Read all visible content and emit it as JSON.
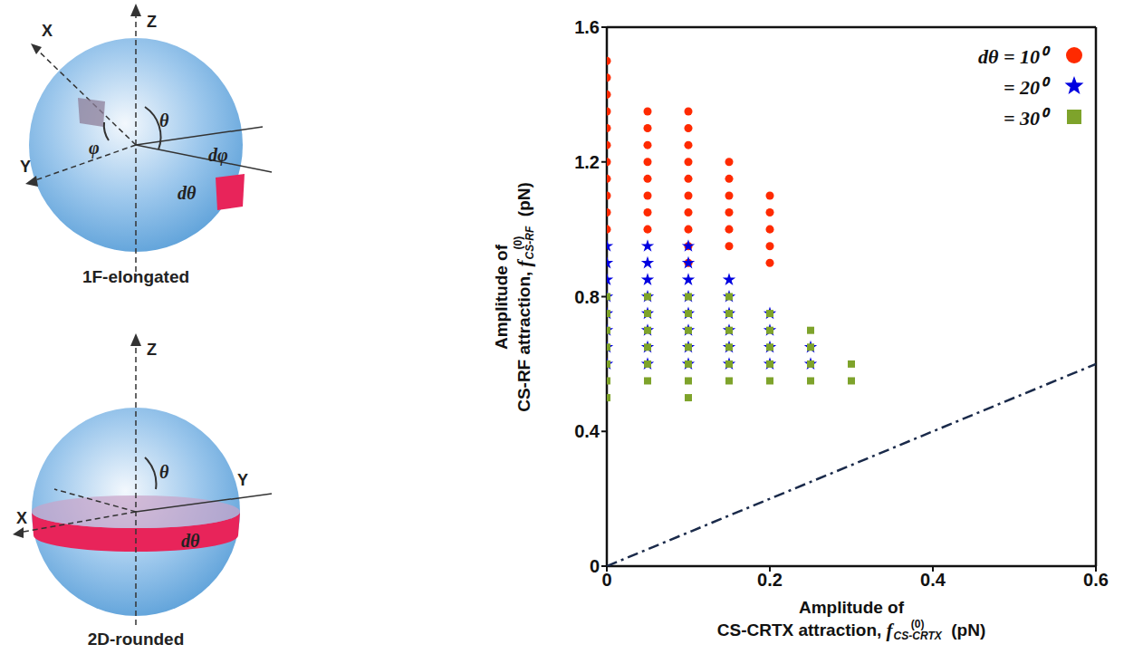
{
  "diagrams": [
    {
      "caption": "1F-elongated",
      "axes": [
        "Z",
        "X",
        "Y"
      ],
      "angles": [
        "φ",
        "θ"
      ],
      "patch": [
        "dφ",
        "dθ"
      ]
    },
    {
      "caption": "2D-rounded",
      "axes": [
        "Z",
        "X",
        "Y"
      ],
      "angles": [
        "θ"
      ],
      "patch": [
        "dθ"
      ]
    }
  ],
  "chart_data": {
    "type": "scatter",
    "xlabel": {
      "line1": "Amplitude of",
      "line2": "CS-CRTX attraction,",
      "symbol": "f",
      "superscript": "(0)",
      "subscript": "CS-CRTX",
      "unit": "(pN)"
    },
    "ylabel": {
      "line1": "Amplitude of",
      "line2": "CS-RF attraction,",
      "symbol": "f",
      "superscript": "(0)",
      "subscript": "CS-RF",
      "unit": "(pN)"
    },
    "xlim": [
      0,
      0.6
    ],
    "xticks": [
      0,
      0.2,
      0.4,
      0.6
    ],
    "ylim": [
      0,
      1.6
    ],
    "yticks": [
      0,
      0.4,
      0.8,
      1.2,
      1.6
    ],
    "grid": false,
    "legend": "upper right",
    "series": [
      {
        "name": "dθ = 10⁰",
        "color": "#ff2a00",
        "marker": "circle",
        "x": [
          0,
          0,
          0,
          0,
          0,
          0,
          0,
          0,
          0,
          0,
          0,
          0.05,
          0.05,
          0.05,
          0.05,
          0.05,
          0.05,
          0.05,
          0.05,
          0.1,
          0.1,
          0.1,
          0.1,
          0.1,
          0.1,
          0.1,
          0.1,
          0.1,
          0.1,
          0.15,
          0.15,
          0.15,
          0.15,
          0.15,
          0.15,
          0.2,
          0.2,
          0.2,
          0.2,
          0.2
        ],
        "values": [
          1.0,
          1.05,
          1.1,
          1.15,
          1.2,
          1.25,
          1.3,
          1.35,
          1.4,
          1.45,
          1.5,
          1.0,
          1.05,
          1.1,
          1.15,
          1.2,
          1.25,
          1.3,
          1.35,
          0.9,
          0.95,
          1.0,
          1.05,
          1.1,
          1.15,
          1.2,
          1.25,
          1.3,
          1.35,
          0.95,
          1.0,
          1.05,
          1.1,
          1.15,
          1.2,
          0.9,
          0.95,
          1.0,
          1.05,
          1.1
        ]
      },
      {
        "name": "= 20⁰",
        "color": "#0000e0",
        "marker": "star",
        "x": [
          0,
          0,
          0,
          0,
          0,
          0,
          0,
          0,
          0.05,
          0.05,
          0.05,
          0.05,
          0.05,
          0.05,
          0.05,
          0.05,
          0.1,
          0.1,
          0.1,
          0.1,
          0.1,
          0.1,
          0.1,
          0.1,
          0.15,
          0.15,
          0.15,
          0.15,
          0.15,
          0.15,
          0.2,
          0.2,
          0.2,
          0.2,
          0.25,
          0.25
        ],
        "values": [
          0.6,
          0.65,
          0.7,
          0.75,
          0.8,
          0.85,
          0.9,
          0.95,
          0.6,
          0.65,
          0.7,
          0.75,
          0.8,
          0.85,
          0.9,
          0.95,
          0.6,
          0.65,
          0.7,
          0.75,
          0.8,
          0.85,
          0.9,
          0.95,
          0.6,
          0.65,
          0.7,
          0.75,
          0.8,
          0.85,
          0.6,
          0.65,
          0.7,
          0.75,
          0.6,
          0.65
        ]
      },
      {
        "name": "= 30⁰",
        "color": "#7ea32b",
        "marker": "square",
        "x": [
          0,
          0,
          0,
          0,
          0,
          0,
          0,
          0.05,
          0.05,
          0.05,
          0.05,
          0.05,
          0.05,
          0.1,
          0.1,
          0.1,
          0.1,
          0.1,
          0.1,
          0.1,
          0.15,
          0.15,
          0.15,
          0.15,
          0.15,
          0.15,
          0.2,
          0.2,
          0.2,
          0.2,
          0.2,
          0.25,
          0.25,
          0.25,
          0.25,
          0.3,
          0.3
        ],
        "values": [
          0.5,
          0.55,
          0.6,
          0.65,
          0.7,
          0.75,
          0.8,
          0.55,
          0.6,
          0.65,
          0.7,
          0.75,
          0.8,
          0.5,
          0.55,
          0.6,
          0.65,
          0.7,
          0.75,
          0.8,
          0.55,
          0.6,
          0.65,
          0.7,
          0.75,
          0.8,
          0.55,
          0.6,
          0.65,
          0.7,
          0.75,
          0.55,
          0.6,
          0.65,
          0.7,
          0.55,
          0.6
        ]
      },
      {
        "type": "line",
        "color": "#1a2a4a",
        "line_style": "dashdot",
        "x": [
          0,
          0.6
        ],
        "values": [
          0,
          0.6
        ]
      }
    ]
  }
}
